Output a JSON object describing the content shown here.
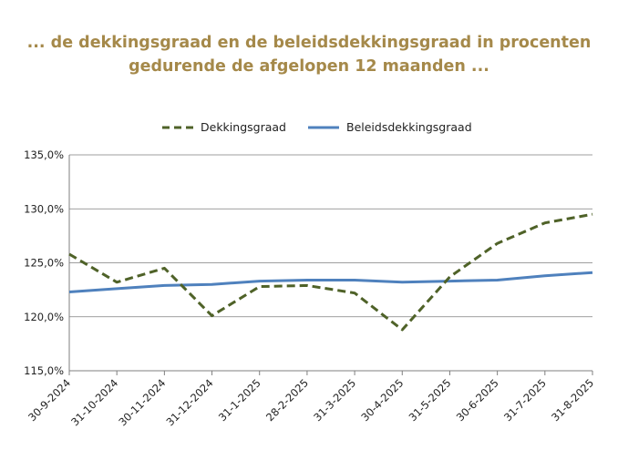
{
  "colors": {
    "title": "#a5894a",
    "dekkingsgraad": "#4f6228",
    "beleidsdekkingsgraad": "#4f81bd",
    "grid": "#7f7f7f",
    "axis": "#7f7f7f"
  },
  "chart_data": {
    "type": "line",
    "title_line1": "... de dekkingsgraad en de beleidsdekkingsgraad in procenten",
    "title_line2": "gedurende de afgelopen 12 maanden ...",
    "categories": [
      "30-9-2024",
      "31-10-2024",
      "30-11-2024",
      "31-12-2024",
      "31-1-2025",
      "28-2-2025",
      "31-3-2025",
      "30-4-2025",
      "31-5-2025",
      "30-6-2025",
      "31-7-2025",
      "31-8-2025"
    ],
    "ylim": [
      115,
      135
    ],
    "yticks": [
      115,
      120,
      125,
      130,
      135
    ],
    "ytick_labels": [
      "115,0%",
      "120,0%",
      "125,0%",
      "130,0%",
      "135,0%"
    ],
    "legend_position": "top-center",
    "grid": true,
    "series": [
      {
        "name": "Dekkingsgraad",
        "style": "dashed",
        "values": [
          125.8,
          123.2,
          124.5,
          120.1,
          122.8,
          122.9,
          122.2,
          118.8,
          123.7,
          126.8,
          128.7,
          129.5
        ]
      },
      {
        "name": "Beleidsdekkingsgraad",
        "style": "solid",
        "values": [
          122.3,
          122.6,
          122.9,
          123.0,
          123.3,
          123.4,
          123.4,
          123.2,
          123.3,
          123.4,
          123.8,
          124.1
        ]
      }
    ]
  }
}
